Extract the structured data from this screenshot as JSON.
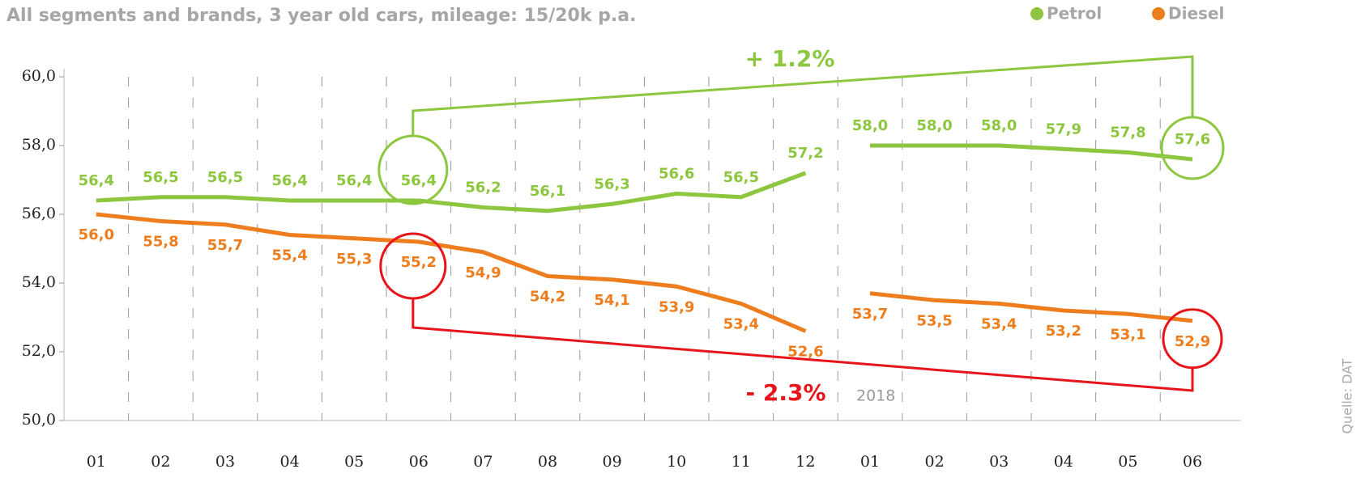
{
  "chart_data": {
    "type": "line",
    "subtitle": "All segments and brands, 3 year old cars, mileage: 15/20k p.a.",
    "categories": [
      "01",
      "02",
      "03",
      "04",
      "05",
      "06",
      "07",
      "08",
      "09",
      "10",
      "11",
      "12",
      "01",
      "02",
      "03",
      "04",
      "05",
      "06"
    ],
    "series": [
      {
        "name": "Petrol",
        "color": "#8dc63f",
        "values": [
          56.4,
          56.5,
          56.5,
          56.4,
          56.4,
          56.4,
          56.2,
          56.1,
          56.3,
          56.6,
          56.5,
          57.2,
          58.0,
          58.0,
          58.0,
          57.9,
          57.8,
          57.6
        ],
        "value_labels": [
          "56,4",
          "56,5",
          "56,5",
          "56,4",
          "56,4",
          "56,4",
          "56,2",
          "56,1",
          "56,3",
          "56,6",
          "56,5",
          "57,2",
          "58,0",
          "58,0",
          "58,0",
          "57,9",
          "57,8",
          "57,6"
        ]
      },
      {
        "name": "Diesel",
        "color": "#ee7d1d",
        "values": [
          56.0,
          55.8,
          55.7,
          55.4,
          55.3,
          55.2,
          54.9,
          54.2,
          54.1,
          53.9,
          53.4,
          52.6,
          53.7,
          53.5,
          53.4,
          53.2,
          53.1,
          52.9
        ],
        "value_labels": [
          "56,0",
          "55,8",
          "55,7",
          "55,4",
          "55,3",
          "55,2",
          "54,9",
          "54,2",
          "54,1",
          "53,9",
          "53,4",
          "52,6",
          "53,7",
          "53,5",
          "53,4",
          "53,2",
          "53,1",
          "52,9"
        ]
      }
    ],
    "ylim": [
      50,
      60
    ],
    "yticks": [
      {
        "value": 50,
        "label": "50,0"
      },
      {
        "value": 52,
        "label": "52,0"
      },
      {
        "value": 54,
        "label": "54,0"
      },
      {
        "value": 56,
        "label": "56,0"
      },
      {
        "value": 58,
        "label": "58,0"
      },
      {
        "value": 60,
        "label": "60,0"
      }
    ],
    "annotations": {
      "petrol_change": "+ 1.2%",
      "diesel_change": "- 2.3%",
      "year": "2018",
      "source": "Quelle: DAT"
    },
    "highlight_color": "#e8141b",
    "legend": "top-right"
  }
}
